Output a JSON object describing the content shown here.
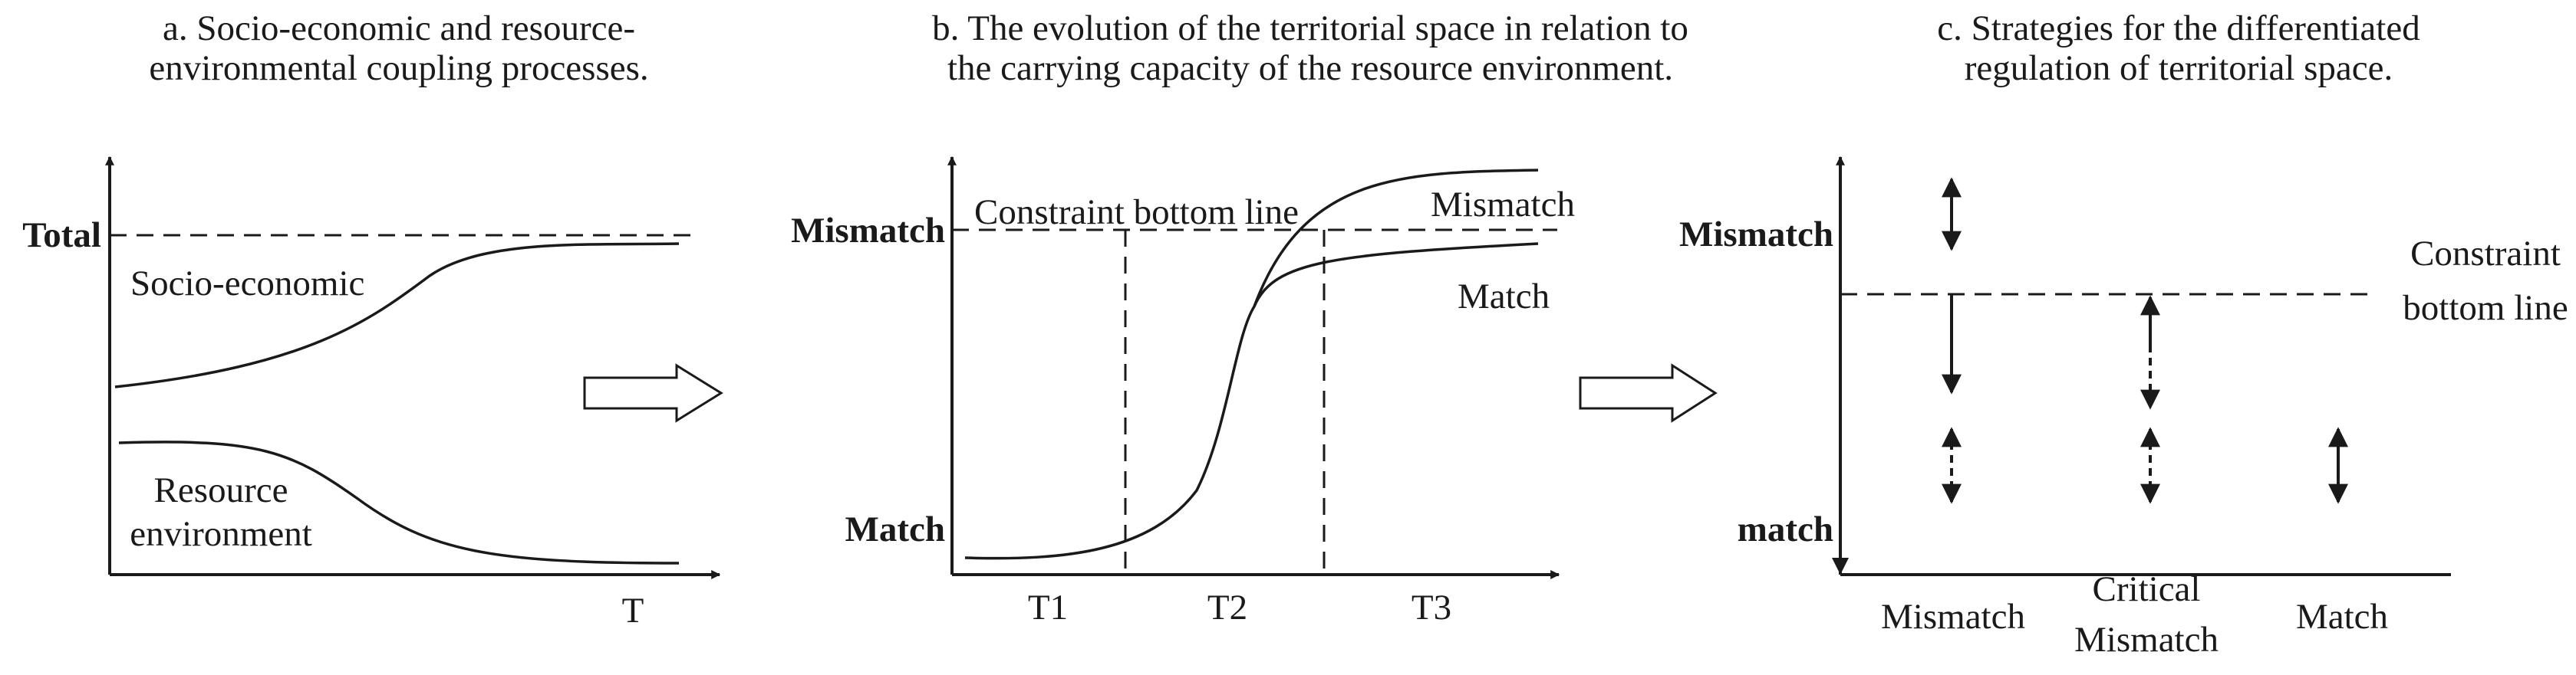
{
  "panels": {
    "a": {
      "title_line1": "a. Socio-economic and resource-",
      "title_line2": "environmental coupling processes.",
      "y_label_total": "Total",
      "curve_upper_label": "Socio-economic",
      "curve_lower_label_line1": "Resource",
      "curve_lower_label_line2": "environment",
      "x_axis_label": "T"
    },
    "b": {
      "title_line1": "b. The evolution of the territorial space in relation to",
      "title_line2": "the carrying capacity of the resource environment.",
      "y_label_top": "Mismatch",
      "y_label_bottom": "Match",
      "constraint_label": "Constraint bottom line",
      "curve_upper_label": "Mismatch",
      "curve_lower_label": "Match",
      "x_ticks": [
        "T1",
        "T2",
        "T3"
      ]
    },
    "c": {
      "title_line1": "c. Strategies for the differentiated",
      "title_line2": "regulation of territorial space.",
      "y_label_top": "Mismatch",
      "y_label_bottom": "match",
      "constraint_label_line1": "Constraint",
      "constraint_label_line2": "bottom line",
      "x_categories": [
        {
          "line1": "Mismatch",
          "line2": ""
        },
        {
          "line1": "Critical",
          "line2": "Mismatch"
        },
        {
          "line1": "Match",
          "line2": ""
        }
      ]
    }
  }
}
